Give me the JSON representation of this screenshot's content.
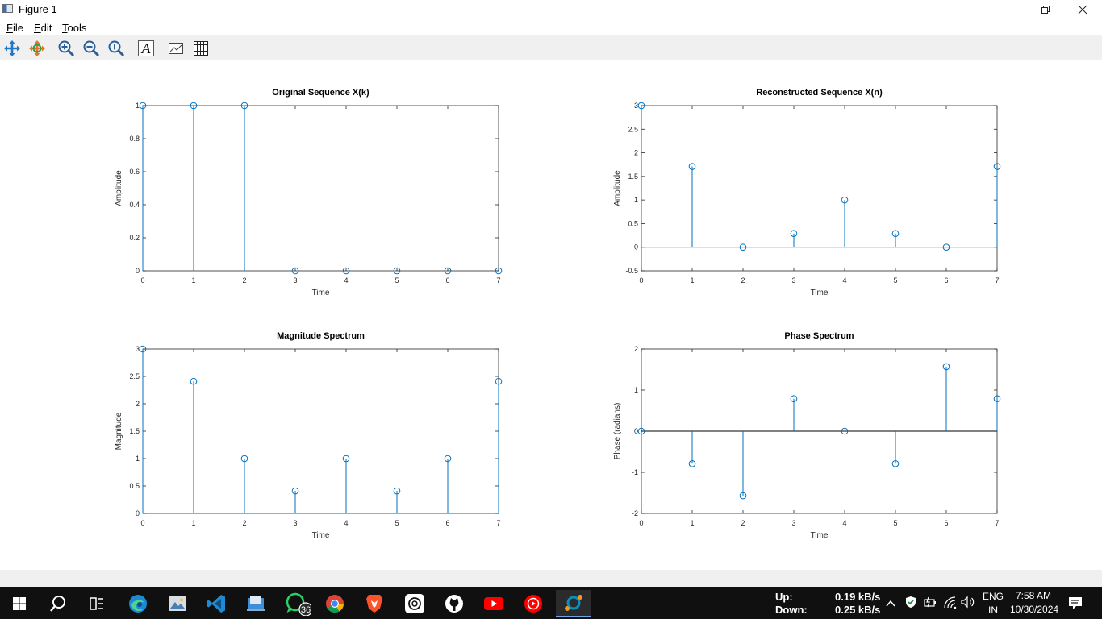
{
  "window": {
    "title": "Figure 1"
  },
  "menu": [
    {
      "key": "F",
      "rest": "ile"
    },
    {
      "key": "E",
      "rest": "dit"
    },
    {
      "key": "T",
      "rest": "ools"
    }
  ],
  "toolbar": {
    "tools": [
      "pan-icon",
      "rotate-icon",
      "zoom-in-icon",
      "zoom-out-icon",
      "zoom-reset-icon",
      "text-icon",
      "axes-icon",
      "grid-icon"
    ],
    "text_glyph": "A"
  },
  "colors": {
    "stem": "#0072bd",
    "axis": "#262626",
    "taskbar": "#101010"
  },
  "chart_data": [
    {
      "type": "stem",
      "title": "Original Sequence X(k)",
      "xlabel": "Time",
      "ylabel": "Amplitude",
      "x": [
        0,
        1,
        2,
        3,
        4,
        5,
        6,
        7
      ],
      "values": [
        1,
        1,
        1,
        0,
        0,
        0,
        0,
        0
      ],
      "xlim": [
        0,
        7
      ],
      "ylim": [
        0,
        1
      ],
      "xticks": [
        "0",
        "1",
        "2",
        "3",
        "4",
        "5",
        "6",
        "7"
      ],
      "yticks": [
        "0",
        "0.2",
        "0.4",
        "0.6",
        "0.8",
        "1"
      ],
      "ytick_values": [
        0,
        0.2,
        0.4,
        0.6,
        0.8,
        1
      ],
      "baseline": false
    },
    {
      "type": "stem",
      "title": "Reconstructed Sequence X(n)",
      "xlabel": "Time",
      "ylabel": "Amplitude",
      "x": [
        0,
        1,
        2,
        3,
        4,
        5,
        6,
        7
      ],
      "values": [
        3,
        1.71,
        0,
        0.29,
        1,
        0.29,
        0,
        1.71
      ],
      "xlim": [
        0,
        7
      ],
      "ylim": [
        -0.5,
        3
      ],
      "xticks": [
        "0",
        "1",
        "2",
        "3",
        "4",
        "5",
        "6",
        "7"
      ],
      "yticks": [
        "-0.5",
        "0",
        "0.5",
        "1",
        "1.5",
        "2",
        "2.5",
        "3"
      ],
      "ytick_values": [
        -0.5,
        0,
        0.5,
        1,
        1.5,
        2,
        2.5,
        3
      ],
      "baseline": true
    },
    {
      "type": "stem",
      "title": "Magnitude Spectrum",
      "xlabel": "Time",
      "ylabel": "Magnitude",
      "x": [
        0,
        1,
        2,
        3,
        4,
        5,
        6,
        7
      ],
      "values": [
        3,
        2.41,
        1,
        0.41,
        1,
        0.41,
        1,
        2.41
      ],
      "xlim": [
        0,
        7
      ],
      "ylim": [
        0,
        3
      ],
      "xticks": [
        "0",
        "1",
        "2",
        "3",
        "4",
        "5",
        "6",
        "7"
      ],
      "yticks": [
        "0",
        "0.5",
        "1",
        "1.5",
        "2",
        "2.5",
        "3"
      ],
      "ytick_values": [
        0,
        0.5,
        1,
        1.5,
        2,
        2.5,
        3
      ],
      "baseline": false
    },
    {
      "type": "stem",
      "title": "Phase Spectrum",
      "xlabel": "Time",
      "ylabel": "Phase (radians)",
      "x": [
        0,
        1,
        2,
        3,
        4,
        5,
        6,
        7
      ],
      "values": [
        0,
        -0.79,
        -1.57,
        0.79,
        0,
        -0.79,
        1.57,
        0.79
      ],
      "xlim": [
        0,
        7
      ],
      "ylim": [
        -2,
        2
      ],
      "xticks": [
        "0",
        "1",
        "2",
        "3",
        "4",
        "5",
        "6",
        "7"
      ],
      "yticks": [
        "-2",
        "-1",
        "0",
        "1",
        "2"
      ],
      "ytick_values": [
        -2,
        -1,
        0,
        1,
        2
      ],
      "baseline": true
    }
  ],
  "taskbar": {
    "icons": [
      "start-icon",
      "search-icon",
      "task-view-icon",
      "edge-icon",
      "photos-icon",
      "vscode-icon",
      "file-explorer-icon",
      "whatsapp-icon",
      "chrome-icon",
      "brave-icon",
      "chatgpt-icon",
      "github-icon",
      "youtube-icon",
      "youtube-music-icon",
      "octave-icon"
    ],
    "whatsapp_badge": "36",
    "net_up_label": "Up:",
    "net_down_label": "Down:",
    "net_up_value": "0.19 kB/s",
    "net_down_value": "0.25 kB/s",
    "lang": "ENG",
    "region": "IN",
    "time": "7:58 AM",
    "date": "10/30/2024"
  }
}
